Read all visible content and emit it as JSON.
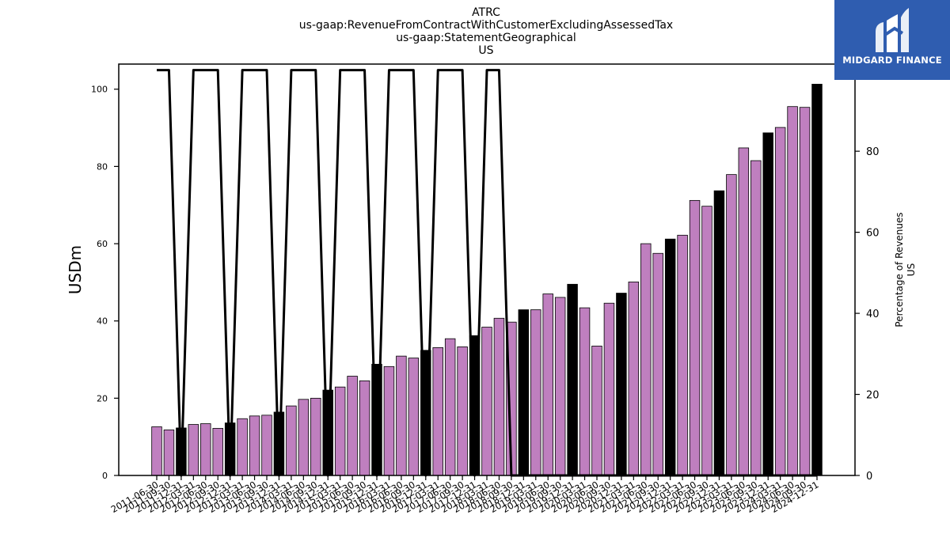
{
  "logo": {
    "text": "MIDGARD FINANCE",
    "color": "#2f5db0"
  },
  "chart_data": {
    "type": "bar",
    "title_lines": [
      "ATRC",
      "us-gaap:RevenueFromContractWithCustomerExcludingAssessedTax",
      "us-gaap:StatementGeographical",
      "US"
    ],
    "ylabel": "USDm",
    "y2label_lines": [
      "Percentage of Revenues",
      "US"
    ],
    "ylim": [
      0,
      106.5
    ],
    "y2lim": [
      0,
      101.5
    ],
    "yticks": [
      0,
      20,
      40,
      60,
      80,
      100
    ],
    "y2ticks": [
      0,
      20,
      40,
      60,
      80,
      100
    ],
    "colors": {
      "quarter_bar": "#bf7fbf",
      "year_end_bar": "#000000",
      "line": "#000000"
    },
    "categories": [
      "2011-06-30",
      "2011-09-30",
      "2011-12-31",
      "2012-03-31",
      "2012-06-30",
      "2012-09-30",
      "2012-12-31",
      "2013-03-31",
      "2013-06-30",
      "2013-09-30",
      "2013-12-31",
      "2014-03-31",
      "2014-06-30",
      "2014-09-30",
      "2014-12-31",
      "2015-03-31",
      "2015-06-30",
      "2015-09-30",
      "2015-12-31",
      "2016-03-31",
      "2016-06-30",
      "2016-09-30",
      "2016-12-31",
      "2017-03-31",
      "2017-06-30",
      "2017-09-30",
      "2017-12-31",
      "2018-03-31",
      "2018-06-30",
      "2018-09-30",
      "2018-12-31",
      "2019-03-31",
      "2019-06-30",
      "2019-09-30",
      "2019-12-31",
      "2020-03-31",
      "2020-06-30",
      "2020-09-30",
      "2020-12-31",
      "2021-03-31",
      "2021-06-30",
      "2021-09-30",
      "2021-12-31",
      "2022-03-31",
      "2022-06-30",
      "2022-09-30",
      "2022-12-31",
      "2023-03-31",
      "2023-06-30",
      "2023-09-30",
      "2023-12-31",
      "2024-03-31",
      "2024-06-30",
      "2024-09-30",
      "2024-12-31"
    ],
    "series": [
      {
        "type": "bar",
        "values": [
          12.6,
          11.8,
          12.3,
          13.2,
          13.4,
          12.2,
          13.6,
          14.7,
          15.4,
          15.6,
          16.4,
          18.0,
          19.7,
          20.0,
          22.1,
          22.9,
          25.7,
          24.5,
          28.8,
          28.2,
          30.9,
          30.4,
          32.4,
          33.1,
          35.4,
          33.3,
          36.2,
          38.4,
          40.7,
          39.7,
          42.9,
          42.9,
          47.0,
          46.1,
          49.5,
          43.4,
          33.5,
          44.6,
          47.2,
          50.1,
          60.0,
          57.5,
          61.2,
          62.2,
          71.2,
          69.7,
          73.7,
          77.9,
          84.8,
          81.5,
          88.7,
          90.1,
          95.5,
          95.3,
          101.3
        ],
        "year_end": [
          false,
          false,
          true,
          false,
          false,
          false,
          true,
          false,
          false,
          false,
          true,
          false,
          false,
          false,
          true,
          false,
          false,
          false,
          true,
          false,
          false,
          false,
          true,
          false,
          false,
          false,
          true,
          false,
          false,
          false,
          true,
          false,
          false,
          false,
          true,
          false,
          false,
          false,
          true,
          false,
          false,
          false,
          true,
          false,
          false,
          false,
          true,
          false,
          false,
          false,
          true,
          false,
          false,
          false,
          true
        ]
      },
      {
        "type": "line",
        "axis": "right",
        "values": [
          100,
          100,
          0,
          100,
          100,
          100,
          0,
          100,
          100,
          100,
          0,
          100,
          100,
          100,
          0,
          100,
          100,
          100,
          0,
          100,
          100,
          100,
          0,
          100,
          100,
          100,
          0,
          100,
          100,
          0,
          0,
          0,
          0,
          0,
          0,
          0,
          0,
          0,
          0,
          0,
          0,
          0,
          0,
          0,
          0,
          0,
          0,
          0,
          0,
          0,
          0,
          0,
          0,
          0,
          0
        ]
      }
    ],
    "grid": false,
    "legend": "none"
  }
}
